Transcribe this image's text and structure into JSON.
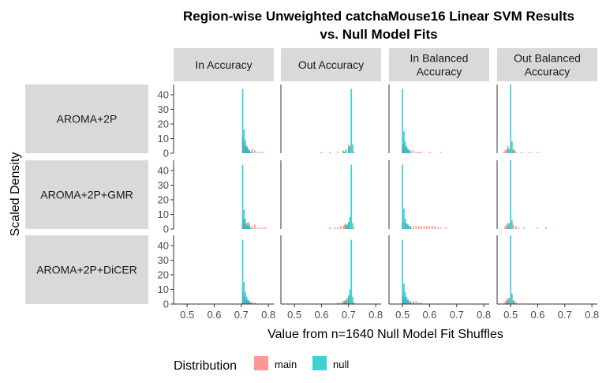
{
  "chart_data": {
    "type": "histogram",
    "title_lines": [
      "Region-wise Unweighted catchaMouse16 Linear SVM Results",
      "vs. Null Model Fits"
    ],
    "xlabel": "Value from n=1640 Null Model Fit Shuffles",
    "ylabel": "Scaled Density",
    "xlim": [
      0.45,
      0.82
    ],
    "ylim": [
      0,
      47
    ],
    "x_ticks": [
      0.5,
      0.6,
      0.7,
      0.8
    ],
    "x_tick_labels": [
      "0.5",
      "0.6",
      "0.7",
      "0.8"
    ],
    "y_ticks": [
      0,
      10,
      20,
      30,
      40
    ],
    "y_tick_labels": [
      "0",
      "10",
      "20",
      "30",
      "40"
    ],
    "columns": [
      {
        "lines": [
          "In Accuracy"
        ]
      },
      {
        "lines": [
          "Out Accuracy"
        ]
      },
      {
        "lines": [
          "In Balanced",
          "Accuracy"
        ]
      },
      {
        "lines": [
          "Out Balanced",
          "Accuracy"
        ]
      }
    ],
    "rows": [
      "AROMA+2P",
      "AROMA+2P+GMR",
      "AROMA+2P+DiCER"
    ],
    "legend": {
      "title": "Distribution",
      "entries": [
        {
          "label": "main",
          "color": "#F8766D"
        },
        {
          "label": "null",
          "color": "#00BFC4"
        }
      ]
    },
    "bin_width": 0.005,
    "series_alpha": 0.75,
    "panels": [
      {
        "row": 0,
        "col": 0,
        "null_bins": [
          [
            0.705,
            44
          ],
          [
            0.71,
            16
          ],
          [
            0.715,
            9
          ],
          [
            0.72,
            5
          ],
          [
            0.725,
            3
          ],
          [
            0.73,
            2
          ],
          [
            0.735,
            1
          ],
          [
            0.74,
            1
          ]
        ],
        "main_bins": [
          [
            0.705,
            11
          ],
          [
            0.71,
            7
          ],
          [
            0.715,
            4
          ],
          [
            0.72,
            5
          ],
          [
            0.725,
            4
          ],
          [
            0.73,
            2
          ],
          [
            0.74,
            3
          ],
          [
            0.75,
            2
          ],
          [
            0.76,
            1
          ],
          [
            0.77,
            1
          ],
          [
            0.78,
            1
          ]
        ]
      },
      {
        "row": 0,
        "col": 1,
        "null_bins": [
          [
            0.7,
            4
          ],
          [
            0.705,
            5
          ],
          [
            0.71,
            44
          ],
          [
            0.715,
            6
          ],
          [
            0.69,
            2
          ],
          [
            0.685,
            1
          ],
          [
            0.68,
            1
          ]
        ],
        "main_bins": [
          [
            0.7,
            6
          ],
          [
            0.69,
            3
          ],
          [
            0.68,
            2
          ],
          [
            0.66,
            1
          ],
          [
            0.63,
            1
          ],
          [
            0.6,
            1
          ],
          [
            0.72,
            1
          ]
        ]
      },
      {
        "row": 0,
        "col": 2,
        "null_bins": [
          [
            0.5,
            44
          ],
          [
            0.505,
            15
          ],
          [
            0.51,
            8
          ],
          [
            0.515,
            5
          ],
          [
            0.52,
            3
          ],
          [
            0.525,
            2
          ],
          [
            0.53,
            1
          ]
        ],
        "main_bins": [
          [
            0.5,
            6
          ],
          [
            0.505,
            6
          ],
          [
            0.51,
            4
          ],
          [
            0.515,
            3
          ],
          [
            0.52,
            3
          ],
          [
            0.53,
            2
          ],
          [
            0.54,
            2
          ],
          [
            0.55,
            1
          ],
          [
            0.56,
            1
          ],
          [
            0.57,
            1
          ],
          [
            0.6,
            1
          ],
          [
            0.64,
            1
          ]
        ]
      },
      {
        "row": 0,
        "col": 3,
        "null_bins": [
          [
            0.495,
            3
          ],
          [
            0.5,
            47
          ],
          [
            0.505,
            8
          ],
          [
            0.49,
            2
          ],
          [
            0.51,
            2
          ]
        ],
        "main_bins": [
          [
            0.49,
            5
          ],
          [
            0.485,
            3
          ],
          [
            0.48,
            2
          ],
          [
            0.475,
            1
          ],
          [
            0.51,
            3
          ],
          [
            0.515,
            2
          ],
          [
            0.52,
            1
          ],
          [
            0.54,
            1
          ],
          [
            0.57,
            1
          ],
          [
            0.6,
            1
          ]
        ]
      },
      {
        "row": 1,
        "col": 0,
        "null_bins": [
          [
            0.705,
            44
          ],
          [
            0.71,
            13
          ],
          [
            0.715,
            7
          ],
          [
            0.72,
            3
          ],
          [
            0.725,
            2
          ],
          [
            0.73,
            2
          ],
          [
            0.735,
            1
          ]
        ],
        "main_bins": [
          [
            0.705,
            6
          ],
          [
            0.71,
            4
          ],
          [
            0.715,
            3
          ],
          [
            0.72,
            4
          ],
          [
            0.725,
            5
          ],
          [
            0.73,
            4
          ],
          [
            0.74,
            2
          ],
          [
            0.75,
            3
          ],
          [
            0.76,
            1
          ],
          [
            0.77,
            1
          ],
          [
            0.78,
            1
          ],
          [
            0.79,
            1
          ]
        ]
      },
      {
        "row": 1,
        "col": 1,
        "null_bins": [
          [
            0.7,
            5
          ],
          [
            0.705,
            8
          ],
          [
            0.71,
            44
          ],
          [
            0.715,
            4
          ],
          [
            0.69,
            3
          ],
          [
            0.695,
            2
          ]
        ],
        "main_bins": [
          [
            0.7,
            4
          ],
          [
            0.695,
            3
          ],
          [
            0.69,
            4
          ],
          [
            0.685,
            3
          ],
          [
            0.68,
            2
          ],
          [
            0.67,
            2
          ],
          [
            0.66,
            1
          ],
          [
            0.65,
            1
          ],
          [
            0.63,
            1
          ],
          [
            0.72,
            1
          ]
        ]
      },
      {
        "row": 1,
        "col": 2,
        "null_bins": [
          [
            0.5,
            44
          ],
          [
            0.505,
            14
          ],
          [
            0.51,
            7
          ],
          [
            0.515,
            4
          ],
          [
            0.52,
            3
          ],
          [
            0.525,
            2
          ],
          [
            0.53,
            1
          ]
        ],
        "main_bins": [
          [
            0.5,
            5
          ],
          [
            0.51,
            4
          ],
          [
            0.52,
            3
          ],
          [
            0.53,
            2
          ],
          [
            0.54,
            2
          ],
          [
            0.55,
            2
          ],
          [
            0.56,
            2
          ],
          [
            0.57,
            2
          ],
          [
            0.58,
            2
          ],
          [
            0.59,
            2
          ],
          [
            0.6,
            2
          ],
          [
            0.61,
            2
          ],
          [
            0.62,
            2
          ],
          [
            0.63,
            1
          ],
          [
            0.64,
            1
          ],
          [
            0.66,
            1
          ]
        ]
      },
      {
        "row": 1,
        "col": 3,
        "null_bins": [
          [
            0.495,
            4
          ],
          [
            0.5,
            47
          ],
          [
            0.505,
            6
          ],
          [
            0.49,
            2
          ]
        ],
        "main_bins": [
          [
            0.49,
            4
          ],
          [
            0.485,
            3
          ],
          [
            0.48,
            2
          ],
          [
            0.51,
            3
          ],
          [
            0.52,
            2
          ],
          [
            0.53,
            1
          ],
          [
            0.55,
            1
          ],
          [
            0.6,
            1
          ],
          [
            0.63,
            1
          ]
        ]
      },
      {
        "row": 2,
        "col": 0,
        "null_bins": [
          [
            0.705,
            44
          ],
          [
            0.71,
            15
          ],
          [
            0.715,
            8
          ],
          [
            0.72,
            5
          ],
          [
            0.725,
            3
          ],
          [
            0.73,
            2
          ],
          [
            0.735,
            1
          ],
          [
            0.74,
            1
          ]
        ],
        "main_bins": [
          [
            0.705,
            8
          ],
          [
            0.71,
            5
          ],
          [
            0.715,
            3
          ],
          [
            0.72,
            3
          ],
          [
            0.725,
            2
          ],
          [
            0.73,
            2
          ],
          [
            0.74,
            1
          ],
          [
            0.75,
            1
          ]
        ]
      },
      {
        "row": 2,
        "col": 1,
        "null_bins": [
          [
            0.7,
            6
          ],
          [
            0.705,
            10
          ],
          [
            0.71,
            44
          ],
          [
            0.715,
            5
          ],
          [
            0.69,
            3
          ],
          [
            0.685,
            2
          ],
          [
            0.68,
            1
          ]
        ],
        "main_bins": [
          [
            0.7,
            5
          ],
          [
            0.695,
            4
          ],
          [
            0.69,
            3
          ],
          [
            0.685,
            2
          ],
          [
            0.68,
            2
          ],
          [
            0.67,
            1
          ],
          [
            0.66,
            1
          ],
          [
            0.72,
            1
          ]
        ]
      },
      {
        "row": 2,
        "col": 2,
        "null_bins": [
          [
            0.5,
            44
          ],
          [
            0.505,
            14
          ],
          [
            0.51,
            8
          ],
          [
            0.515,
            5
          ],
          [
            0.52,
            3
          ],
          [
            0.525,
            2
          ],
          [
            0.53,
            1
          ],
          [
            0.54,
            1
          ]
        ],
        "main_bins": [
          [
            0.5,
            5
          ],
          [
            0.505,
            5
          ],
          [
            0.51,
            4
          ],
          [
            0.52,
            3
          ],
          [
            0.53,
            2
          ],
          [
            0.54,
            2
          ],
          [
            0.55,
            2
          ],
          [
            0.56,
            1
          ],
          [
            0.57,
            1
          ]
        ]
      },
      {
        "row": 2,
        "col": 3,
        "null_bins": [
          [
            0.495,
            4
          ],
          [
            0.5,
            47
          ],
          [
            0.505,
            7
          ],
          [
            0.49,
            2
          ],
          [
            0.51,
            2
          ]
        ],
        "main_bins": [
          [
            0.49,
            4
          ],
          [
            0.485,
            3
          ],
          [
            0.48,
            2
          ],
          [
            0.51,
            3
          ],
          [
            0.515,
            2
          ],
          [
            0.52,
            1
          ]
        ]
      }
    ]
  }
}
